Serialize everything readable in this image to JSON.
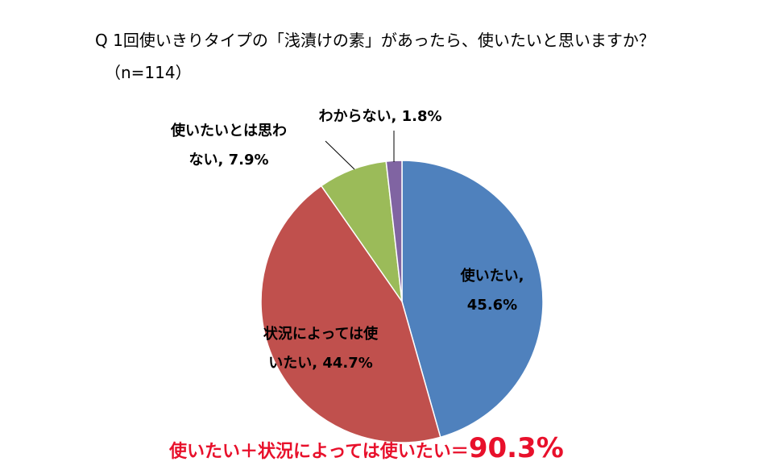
{
  "title": "Q 1回使いきりタイプの「浅漬けの素」があったら、使いたいと思いますか？",
  "subtitle": "（n=114）",
  "chart_data": {
    "type": "pie",
    "start_angle": "12 o'clock",
    "direction": "clockwise",
    "slices": [
      {
        "name": "使いたい",
        "value": 45.6,
        "label_lines": [
          "使いたい,",
          "45.6%"
        ],
        "color": "#4f81bd"
      },
      {
        "name": "状況によっては使いたい",
        "value": 44.7,
        "label_lines": [
          "状況によっては使",
          "いたい, 44.7%"
        ],
        "color": "#c0504d"
      },
      {
        "name": "使いたいとは思わない",
        "value": 7.9,
        "label_lines": [
          "使いたいとは思わ",
          "ない, 7.9%"
        ],
        "color": "#9bbb59"
      },
      {
        "name": "わからない",
        "value": 1.8,
        "label_lines": [
          "わからない, 1.8%"
        ],
        "color": "#8064a2"
      }
    ]
  },
  "summary": {
    "text": "使いたい＋状況によっては使いたい＝",
    "value": "90.3%",
    "color": "#e8102b"
  }
}
